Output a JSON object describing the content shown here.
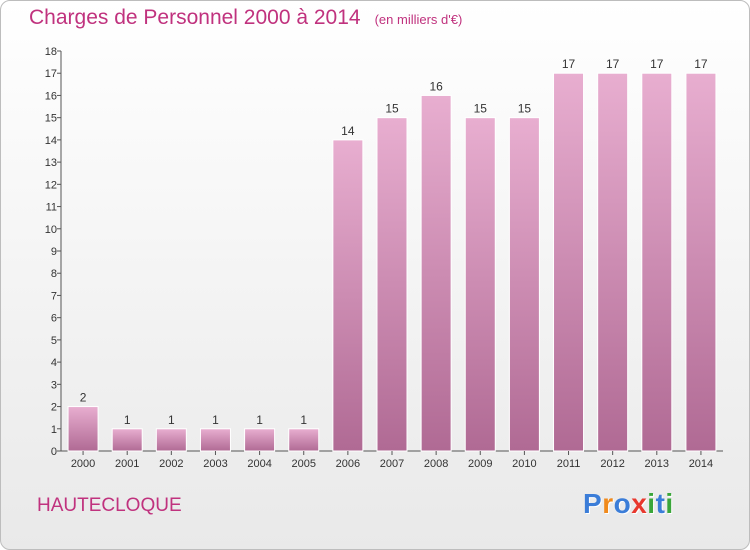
{
  "header": {
    "title": "Charges de Personnel 2000 à 2014",
    "unit": "(en milliers d'€)"
  },
  "footer": {
    "commune": "HAUTECLOQUE",
    "logo": {
      "text": "Proxiti",
      "letters": [
        {
          "ch": "P",
          "color": "#3b7dd8"
        },
        {
          "ch": "r",
          "color": "#f08a1c"
        },
        {
          "ch": "o",
          "color": "#3b7dd8"
        },
        {
          "ch": "x",
          "color": "#e8382e"
        },
        {
          "ch": "i",
          "color": "#3aa63a"
        },
        {
          "ch": "t",
          "color": "#3b7dd8"
        },
        {
          "ch": "i",
          "color": "#3aa63a"
        }
      ]
    }
  },
  "chart_data": {
    "type": "bar",
    "title": "Charges de Personnel 2000 à 2014",
    "subtitle": "(en milliers d'€)",
    "categories": [
      "2000",
      "2001",
      "2002",
      "2003",
      "2004",
      "2005",
      "2006",
      "2007",
      "2008",
      "2009",
      "2010",
      "2011",
      "2012",
      "2013",
      "2014"
    ],
    "values": [
      2,
      1,
      1,
      1,
      1,
      1,
      14,
      15,
      16,
      15,
      15,
      17,
      17,
      17,
      17
    ],
    "ylim": [
      0,
      18
    ],
    "yticks": [
      0,
      1,
      2,
      3,
      4,
      5,
      6,
      7,
      8,
      9,
      10,
      11,
      12,
      13,
      14,
      15,
      16,
      17,
      18
    ],
    "grid": false,
    "data_labels": true,
    "bar_color_top": "#e8aed0",
    "bar_color_bottom": "#b06a94",
    "text_color": "#c0327e"
  }
}
